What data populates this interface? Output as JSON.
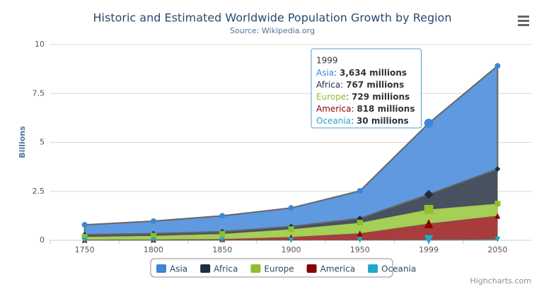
{
  "chart_data": {
    "type": "stacked_area",
    "title": "Historic and Estimated Worldwide Population Growth by Region",
    "subtitle": "Source: Wikipedia.org",
    "y_label": "Billions",
    "categories": [
      "1750",
      "1800",
      "1850",
      "1900",
      "1950",
      "1999",
      "2050"
    ],
    "series": [
      {
        "name": "Asia",
        "color": "#3d85d6",
        "fill": "#5f99df",
        "marker": "circle",
        "values": [
          0.502,
          0.635,
          0.809,
          0.947,
          1.402,
          3.634,
          5.268
        ]
      },
      {
        "name": "Africa",
        "color": "#1f2d44",
        "fill": "#47515f",
        "marker": "diamond",
        "values": [
          0.106,
          0.107,
          0.111,
          0.133,
          0.221,
          0.767,
          1.766
        ]
      },
      {
        "name": "Europe",
        "color": "#90bf2c",
        "fill": "#a5cf55",
        "marker": "square",
        "values": [
          0.163,
          0.203,
          0.276,
          0.408,
          0.547,
          0.729,
          0.628
        ]
      },
      {
        "name": "America",
        "color": "#8b0000",
        "fill": "#a93c3c",
        "marker": "triangle",
        "values": [
          0.018,
          0.031,
          0.054,
          0.156,
          0.339,
          0.818,
          1.201
        ]
      },
      {
        "name": "Oceania",
        "color": "#1fa8c9",
        "fill": "#4fbcd6",
        "marker": "triangle-down",
        "values": [
          0.002,
          0.002,
          0.002,
          0.006,
          0.013,
          0.03,
          0.046
        ]
      }
    ],
    "ylim": [
      0,
      10
    ],
    "yticks": [
      0,
      2.5,
      5,
      7.5,
      10
    ],
    "grid": true,
    "tooltip": {
      "category_index": 5,
      "labels": [
        "3,634 millions",
        "767 millions",
        "729 millions",
        "818 millions",
        "30 millions"
      ]
    },
    "credits": "Highcharts.com"
  }
}
